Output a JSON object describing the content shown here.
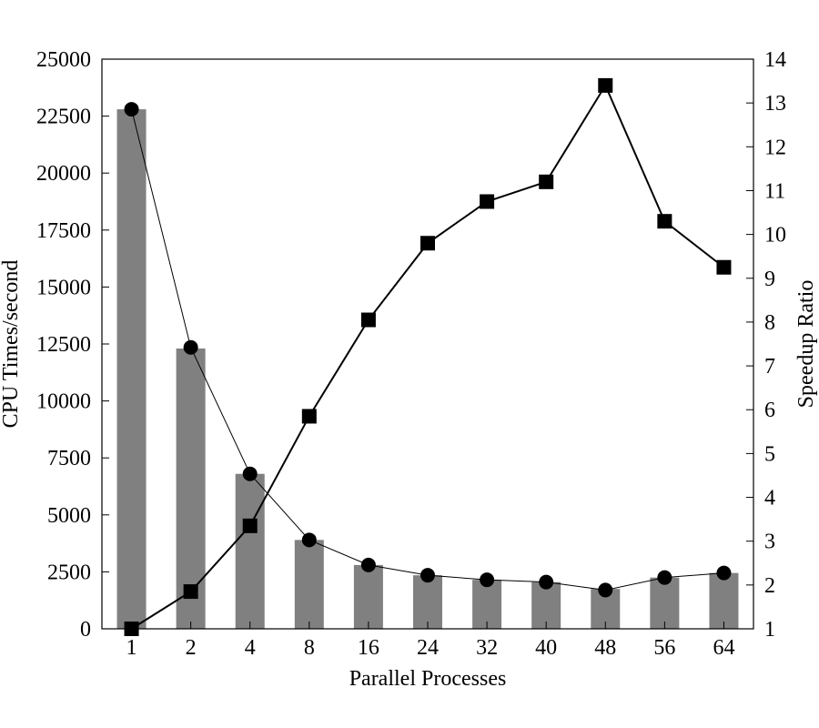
{
  "chart_data": {
    "type": "bar",
    "title": "",
    "xlabel": "Parallel Processes",
    "ylabel_left": "CPU Times/second",
    "ylabel_right": "Speedup Ratio",
    "categories": [
      "1",
      "2",
      "4",
      "8",
      "16",
      "24",
      "32",
      "40",
      "48",
      "56",
      "64"
    ],
    "left_axis": {
      "ylim": [
        0,
        25000
      ],
      "ticks": [
        "0",
        "2500",
        "5000",
        "7500",
        "10000",
        "12500",
        "15000",
        "17500",
        "20000",
        "22500",
        "25000"
      ]
    },
    "right_axis": {
      "ylim": [
        1,
        14
      ],
      "ticks": [
        "1",
        "2",
        "3",
        "4",
        "5",
        "6",
        "7",
        "8",
        "9",
        "10",
        "11",
        "12",
        "13",
        "14"
      ]
    },
    "grid": false,
    "series": [
      {
        "kind": "bar",
        "axis": "left",
        "color": "#808080",
        "values": [
          22800,
          12300,
          6800,
          3900,
          2800,
          2350,
          2150,
          2050,
          1750,
          2250,
          2450
        ]
      },
      {
        "kind": "line",
        "marker": "circle",
        "axis": "left",
        "color": "#000000",
        "values": [
          22800,
          12350,
          6800,
          3900,
          2800,
          2350,
          2150,
          2050,
          1700,
          2250,
          2450
        ]
      },
      {
        "kind": "line",
        "marker": "square",
        "axis": "right",
        "color": "#000000",
        "values": [
          1.0,
          1.85,
          3.35,
          5.85,
          8.05,
          9.8,
          10.75,
          11.2,
          13.4,
          10.3,
          9.25
        ]
      }
    ]
  }
}
